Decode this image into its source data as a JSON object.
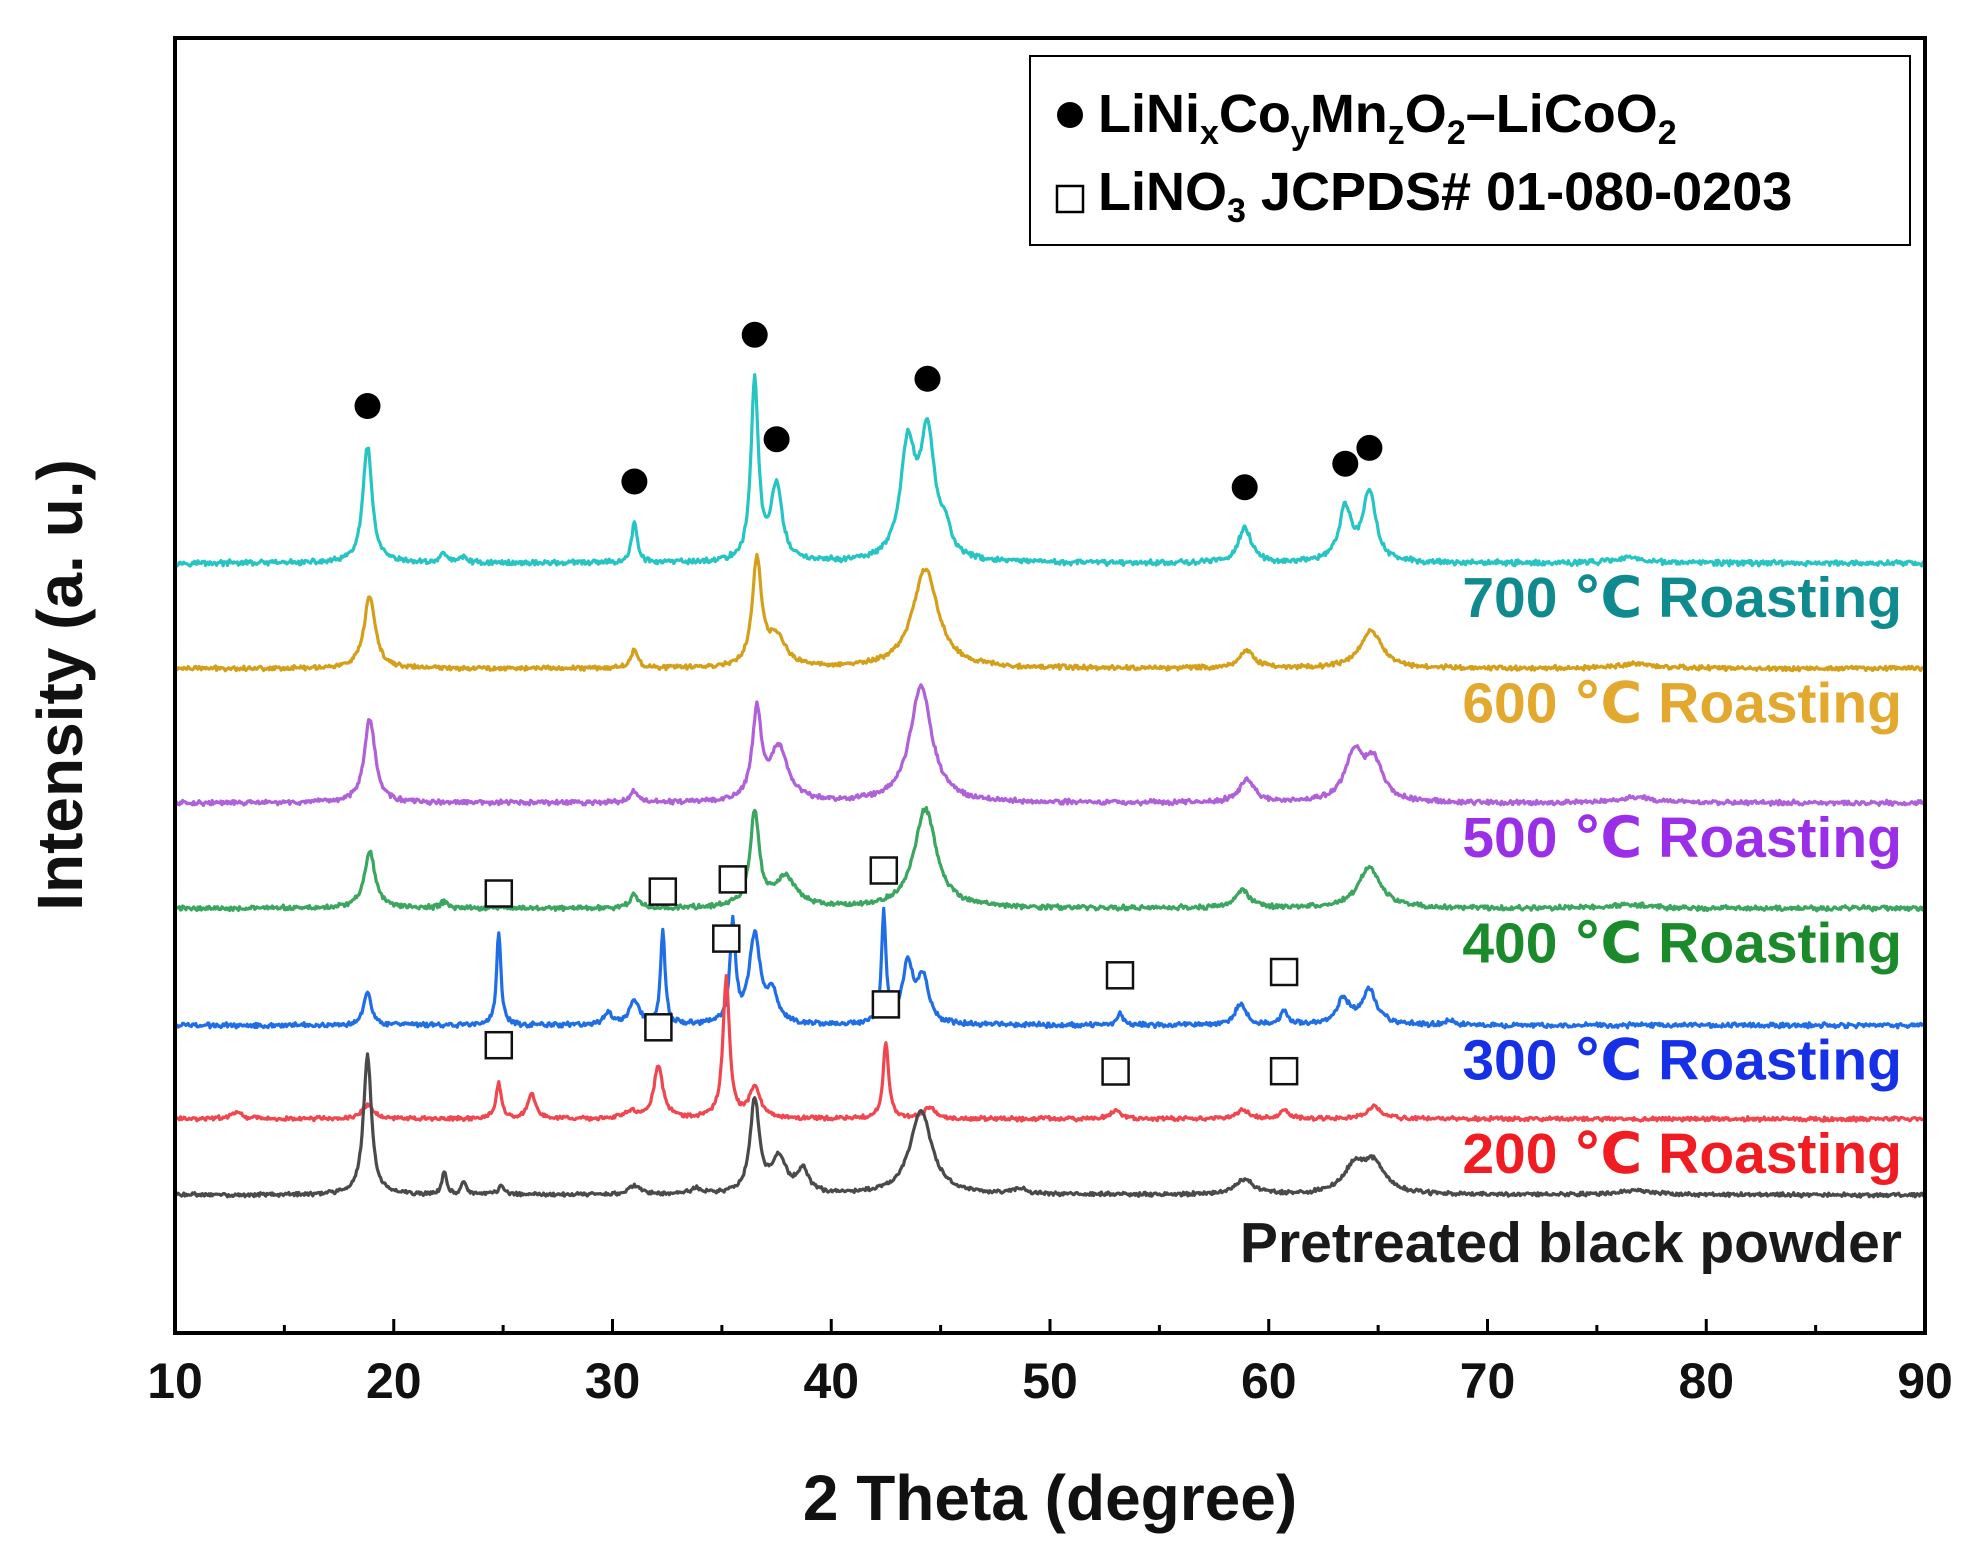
{
  "chart_data": {
    "type": "line",
    "subtype": "stacked XRD patterns (offset vertically)",
    "xlabel": "2 Theta (degree)",
    "ylabel": "Intensity (a. u.)",
    "xlim": [
      10,
      90
    ],
    "x_ticks": [
      "10",
      "20",
      "30",
      "40",
      "50",
      "60",
      "70",
      "80",
      "90"
    ],
    "y_ticks_shown": false,
    "legend": {
      "position": "top-right",
      "entries": [
        {
          "symbol": "filled-circle",
          "text_parts": [
            [
              "LiNi",
              "normal"
            ],
            [
              "x",
              "sub"
            ],
            [
              "Co",
              "normal"
            ],
            [
              "y",
              "sub"
            ],
            [
              "Mn",
              "normal"
            ],
            [
              "z",
              "sub"
            ],
            [
              "O",
              "normal"
            ],
            [
              "2",
              "sub"
            ],
            [
              "–LiCoO",
              "normal"
            ],
            [
              "2",
              "sub"
            ]
          ]
        },
        {
          "symbol": "open-square",
          "text_parts": [
            [
              "LiNO",
              "normal"
            ],
            [
              "3",
              "sub"
            ],
            [
              " JCPDS# 01-080-0203",
              "normal"
            ]
          ]
        }
      ]
    },
    "series": [
      {
        "name": "700 ℃ Roasting",
        "color": "#27c4c4",
        "label_color": "#0f8a8f",
        "offset": 5.4,
        "noise": 0.018,
        "peaks": [
          [
            18.8,
            1.0,
            0.25
          ],
          [
            22.3,
            0.08,
            0.2
          ],
          [
            23.2,
            0.05,
            0.2
          ],
          [
            31.0,
            0.35,
            0.15
          ],
          [
            36.5,
            1.55,
            0.2
          ],
          [
            37.5,
            0.65,
            0.3
          ],
          [
            43.5,
            0.95,
            0.4
          ],
          [
            44.4,
            1.05,
            0.4
          ],
          [
            45.2,
            0.2,
            0.3
          ],
          [
            58.9,
            0.3,
            0.35
          ],
          [
            63.5,
            0.45,
            0.35
          ],
          [
            64.6,
            0.6,
            0.35
          ],
          [
            76.5,
            0.05,
            0.8
          ]
        ]
      },
      {
        "name": "600 ℃ Roasting",
        "color": "#d4a01a",
        "label_color": "#e3a82e",
        "offset": 4.5,
        "noise": 0.015,
        "peaks": [
          [
            18.9,
            0.62,
            0.3
          ],
          [
            31.0,
            0.15,
            0.2
          ],
          [
            36.6,
            0.9,
            0.25
          ],
          [
            37.5,
            0.25,
            0.5
          ],
          [
            44.3,
            0.85,
            0.7
          ],
          [
            59.0,
            0.15,
            0.4
          ],
          [
            64.7,
            0.32,
            0.6
          ],
          [
            76.8,
            0.04,
            1.0
          ]
        ]
      },
      {
        "name": "500 ℃ Roasting",
        "color": "#b060d8",
        "label_color": "#9b2fe8",
        "offset": 3.35,
        "noise": 0.016,
        "peaks": [
          [
            18.9,
            0.72,
            0.3
          ],
          [
            31.0,
            0.1,
            0.2
          ],
          [
            36.6,
            0.75,
            0.25
          ],
          [
            37.6,
            0.45,
            0.5
          ],
          [
            44.1,
            1.0,
            0.6
          ],
          [
            59.0,
            0.2,
            0.4
          ],
          [
            63.9,
            0.4,
            0.5
          ],
          [
            64.8,
            0.33,
            0.5
          ],
          [
            76.8,
            0.05,
            1.0
          ]
        ]
      },
      {
        "name": "400 ℃ Roasting",
        "color": "#3aa65f",
        "label_color": "#1a8a2a",
        "offset": 2.45,
        "noise": 0.016,
        "peaks": [
          [
            18.9,
            0.48,
            0.3
          ],
          [
            22.3,
            0.05,
            0.2
          ],
          [
            31.0,
            0.12,
            0.2
          ],
          [
            36.5,
            0.8,
            0.25
          ],
          [
            37.9,
            0.25,
            0.6
          ],
          [
            44.3,
            0.85,
            0.6
          ],
          [
            58.8,
            0.15,
            0.4
          ],
          [
            64.6,
            0.35,
            0.6
          ],
          [
            76.5,
            0.03,
            1.0
          ]
        ]
      },
      {
        "name": "300 ℃ Roasting",
        "color": "#1f6ee6",
        "label_color": "#1530e6",
        "offset": 1.45,
        "noise": 0.016,
        "peaks": [
          [
            18.8,
            0.3,
            0.2
          ],
          [
            24.8,
            0.8,
            0.12
          ],
          [
            29.8,
            0.1,
            0.2
          ],
          [
            31.0,
            0.2,
            0.3
          ],
          [
            32.3,
            0.8,
            0.12
          ],
          [
            35.5,
            0.85,
            0.15
          ],
          [
            36.5,
            0.75,
            0.3
          ],
          [
            37.3,
            0.25,
            0.3
          ],
          [
            42.4,
            0.95,
            0.12
          ],
          [
            43.5,
            0.5,
            0.3
          ],
          [
            44.2,
            0.38,
            0.3
          ],
          [
            53.2,
            0.1,
            0.15
          ],
          [
            58.7,
            0.18,
            0.3
          ],
          [
            60.7,
            0.12,
            0.2
          ],
          [
            63.4,
            0.22,
            0.35
          ],
          [
            64.6,
            0.3,
            0.4
          ],
          [
            68.3,
            0.05,
            0.2
          ]
        ]
      },
      {
        "name": "200 ℃ Roasting",
        "color": "#f0464f",
        "label_color": "#f01c22",
        "offset": 0.65,
        "noise": 0.014,
        "peaks": [
          [
            12.8,
            0.06,
            0.3
          ],
          [
            18.8,
            0.12,
            0.3
          ],
          [
            24.8,
            0.3,
            0.15
          ],
          [
            26.3,
            0.22,
            0.2
          ],
          [
            30.8,
            0.06,
            0.3
          ],
          [
            32.1,
            0.45,
            0.25
          ],
          [
            35.2,
            1.2,
            0.18
          ],
          [
            36.5,
            0.26,
            0.3
          ],
          [
            42.5,
            0.65,
            0.15
          ],
          [
            44.5,
            0.1,
            0.3
          ],
          [
            53.0,
            0.08,
            0.25
          ],
          [
            58.8,
            0.08,
            0.3
          ],
          [
            60.7,
            0.08,
            0.25
          ],
          [
            64.8,
            0.1,
            0.4
          ]
        ]
      },
      {
        "name": "Pretreated black powder",
        "color": "#4a4a4a",
        "label_color": "#1a1a1a",
        "offset": 0.0,
        "noise": 0.013,
        "peaks": [
          [
            18.8,
            1.2,
            0.22
          ],
          [
            22.3,
            0.2,
            0.12
          ],
          [
            23.2,
            0.12,
            0.12
          ],
          [
            24.9,
            0.08,
            0.15
          ],
          [
            31.0,
            0.08,
            0.3
          ],
          [
            33.8,
            0.05,
            0.3
          ],
          [
            36.5,
            0.8,
            0.25
          ],
          [
            37.6,
            0.3,
            0.4
          ],
          [
            38.7,
            0.2,
            0.3
          ],
          [
            44.1,
            0.72,
            0.6
          ],
          [
            48.6,
            0.05,
            0.4
          ],
          [
            58.9,
            0.13,
            0.5
          ],
          [
            63.9,
            0.22,
            0.6
          ],
          [
            64.8,
            0.25,
            0.6
          ],
          [
            76.8,
            0.04,
            1.0
          ]
        ]
      }
    ],
    "markers": {
      "filled_circle": [
        18.8,
        31.0,
        36.5,
        37.5,
        44.4,
        58.9,
        63.5,
        64.6
      ],
      "open_square_300C": [
        24.8,
        32.3,
        35.5,
        42.4,
        53.2,
        60.7
      ],
      "open_square_200C": [
        24.8,
        32.1,
        35.2,
        42.5,
        53.0,
        60.7
      ]
    }
  }
}
